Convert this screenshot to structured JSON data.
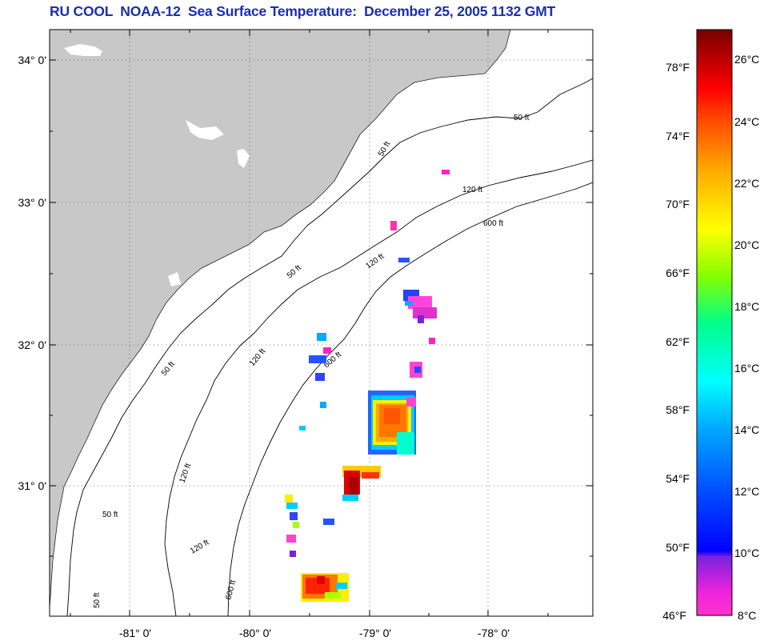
{
  "title": "RU COOL  NOAA-12  Sea Surface Temperature:  December 25, 2005 1132 GMT",
  "map": {
    "lat_ticks": [
      {
        "lat": 34,
        "label": "34° 0'"
      },
      {
        "lat": 33,
        "label": "33° 0'"
      },
      {
        "lat": 32,
        "label": "32° 0'"
      },
      {
        "lat": 31,
        "label": "31° 0'"
      }
    ],
    "lon_ticks": [
      {
        "lon": -81,
        "label": "-81° 0'"
      },
      {
        "lon": -80,
        "label": "-80° 0'"
      },
      {
        "lon": -79,
        "label": "-79° 0'"
      },
      {
        "lon": -78,
        "label": "-78° 0'"
      }
    ],
    "contour_labels": [
      "50 ft",
      "120 ft",
      "600 ft"
    ],
    "colors": {
      "land": "#c8c8c8",
      "ocean": "#ffffff",
      "title": "#1a2fb0"
    }
  },
  "colorbar": {
    "fahrenheit_labels": [
      "78°F",
      "74°F",
      "70°F",
      "66°F",
      "62°F",
      "58°F",
      "54°F",
      "50°F",
      "46°F"
    ],
    "celsius_labels": [
      "26°C",
      "24°C",
      "22°C",
      "20°C",
      "18°C",
      "16°C",
      "14°C",
      "12°C",
      "10°C",
      "8°C"
    ],
    "range_c": [
      8,
      27.5
    ]
  }
}
